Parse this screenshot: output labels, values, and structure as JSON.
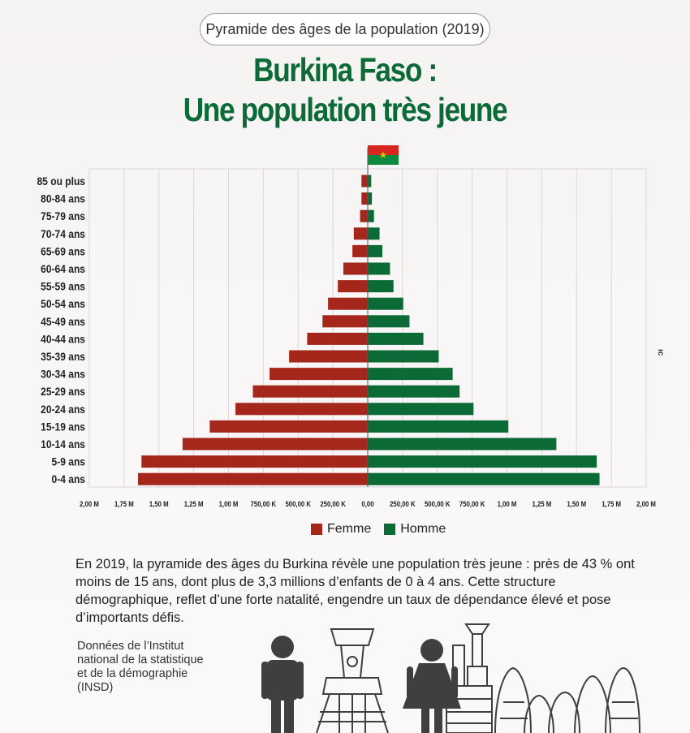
{
  "header": {
    "pill_label": "Pyramide des âges de la population (2019)",
    "title_line1": "Burkina Faso :",
    "title_line2": "Une population très jeune"
  },
  "colors": {
    "femme": "#a5271b",
    "homme": "#0c6a37",
    "title": "#0c6a37",
    "flag_red": "#d7261e",
    "flag_green": "#0c8a3e",
    "flag_star": "#f4c20d"
  },
  "chart_data": {
    "type": "bar",
    "orientation": "horizontal-pyramid",
    "categories": [
      "85 ou plus",
      "80-84 ans",
      "75-79 ans",
      "70-74 ans",
      "65-69 ans",
      "60-64 ans",
      "55-59 ans",
      "50-54 ans",
      "45-49 ans",
      "40-44 ans",
      "35-39 ans",
      "30-34 ans",
      "25-29 ans",
      "20-24 ans",
      "15-19 ans",
      "10-14 ans",
      "5-9 ans",
      "0-4 ans"
    ],
    "series": [
      {
        "name": "Femme",
        "side": "left",
        "values": [
          45000,
          45000,
          55000,
          100000,
          110000,
          175000,
          215000,
          285000,
          325000,
          435000,
          565000,
          705000,
          825000,
          950000,
          1135000,
          1330000,
          1625000,
          1650000
        ]
      },
      {
        "name": "Homme",
        "side": "right",
        "values": [
          25000,
          30000,
          45000,
          85000,
          105000,
          160000,
          185000,
          255000,
          300000,
          400000,
          510000,
          610000,
          660000,
          760000,
          1010000,
          1355000,
          1645000,
          1665000
        ]
      }
    ],
    "xlim": [
      -2000000,
      2000000
    ],
    "x_tick_values": [
      -2000000,
      -1750000,
      -1500000,
      -1250000,
      -1000000,
      -750000,
      -500000,
      -250000,
      0,
      250000,
      500000,
      750000,
      1000000,
      1250000,
      1500000,
      1750000,
      2000000
    ],
    "x_tick_labels": [
      "2,00 M",
      "1,75 M",
      "1,50 M",
      "1,25 M",
      "1,00 M",
      "750,00 K",
      "500,00 K",
      "250,00 K",
      "0,00",
      "250,00 K",
      "500,00 K",
      "750,00 K",
      "1,00 M",
      "1,25 M",
      "1,50 M",
      "1,75 M",
      "2,00 M"
    ],
    "grid": true,
    "legend": "bottom-center",
    "xlabel": "",
    "ylabel": ""
  },
  "legend": {
    "femme_label": "Femme",
    "homme_label": "Homme"
  },
  "description": "En 2019, la pyramide des âges du Burkina  révèle une population très jeune : près de 43 % ont moins de 15 ans, dont plus de 3,3 millions d’enfants de 0 à 4 ans. Cette structure démographique, reflet d’une forte natalité, engendre un taux de dépendance élevé et pose d’importants défis.",
  "source": "Données de l’Institut national de la statistique et de la démographie (INSD)",
  "side_mark": "ıc",
  "icons": {
    "flag": "burkina-faso-flag-icon",
    "man": "man-icon",
    "woman": "woman-icon",
    "monument": "monument-icon"
  }
}
